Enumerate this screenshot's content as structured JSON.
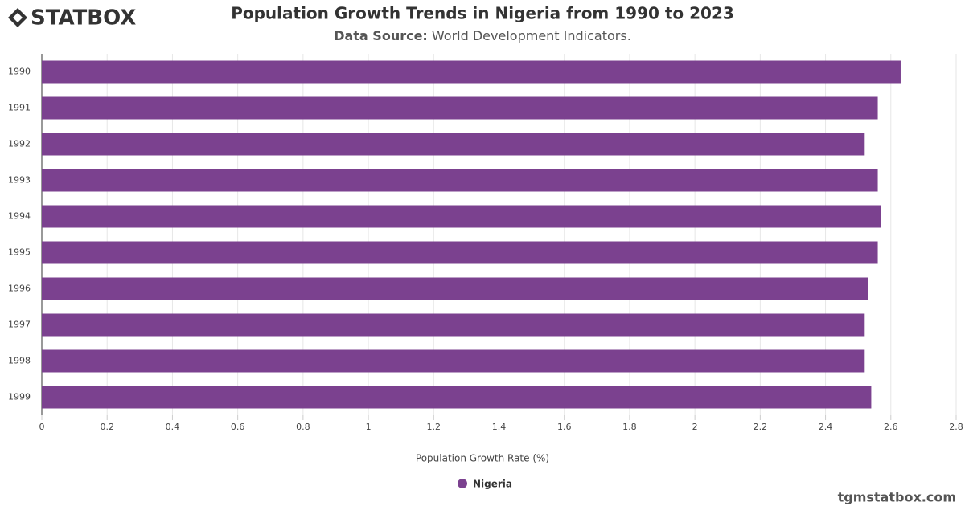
{
  "logo": "STATBOX",
  "watermark": "tgmstatbox.com",
  "chart_data": {
    "type": "bar",
    "orientation": "horizontal",
    "title": "Population Growth Trends in Nigeria from 1990 to 2023",
    "source_label": "Data Source:",
    "source": "World Development Indicators.",
    "x_label": "Population Growth Rate (%)",
    "categories": [
      "1990",
      "1991",
      "1992",
      "1993",
      "1994",
      "1995",
      "1996",
      "1997",
      "1998",
      "1999"
    ],
    "series": [
      {
        "name": "Nigeria",
        "color": "#7b418f",
        "values": [
          2.63,
          2.56,
          2.52,
          2.56,
          2.57,
          2.56,
          2.53,
          2.52,
          2.52,
          2.54
        ]
      }
    ],
    "xlim": [
      0,
      2.8
    ],
    "xticks": [
      0,
      0.2,
      0.4,
      0.6,
      0.8,
      1,
      1.2,
      1.4,
      1.6,
      1.8,
      2,
      2.2,
      2.4,
      2.6,
      2.8
    ],
    "grid": true
  }
}
